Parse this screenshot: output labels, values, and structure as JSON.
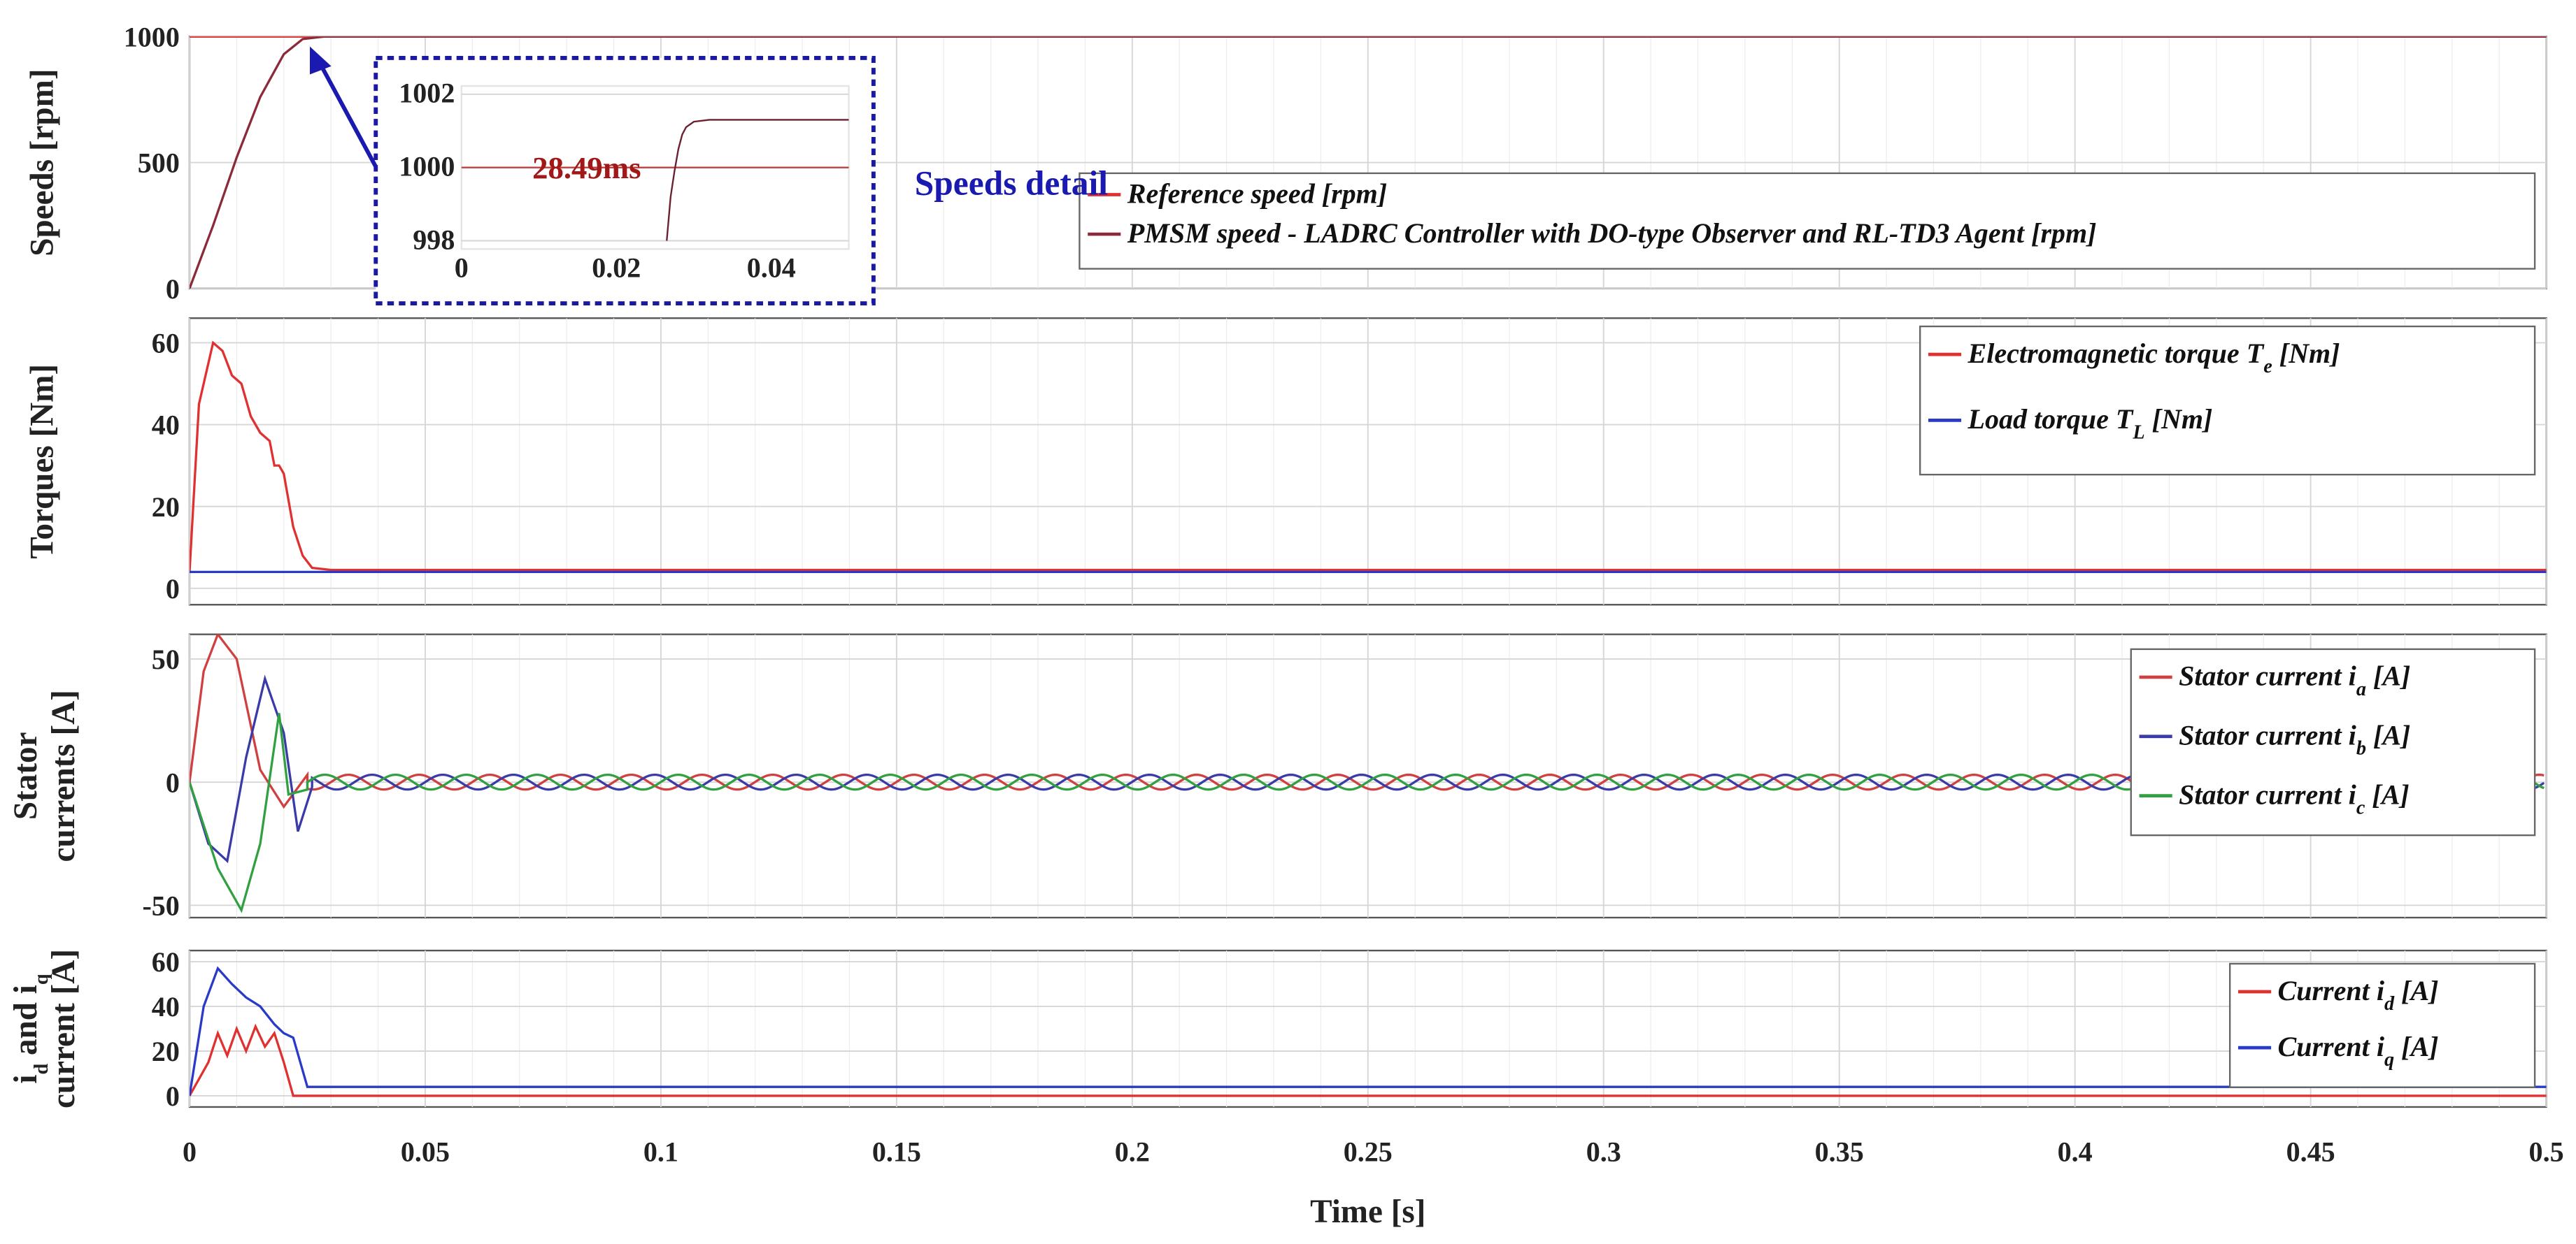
{
  "chart_data": {
    "type": "line",
    "xlabel": "Time [s]",
    "xlim": [
      0,
      0.5
    ],
    "xticks": [
      "0",
      "0.05",
      "0.1",
      "0.15",
      "0.2",
      "0.25",
      "0.3",
      "0.35",
      "0.4",
      "0.45",
      "0.5"
    ],
    "grid": true,
    "panels": [
      {
        "id": "speeds",
        "ylabel": "Speeds [rpm]",
        "ylim": [
          0,
          1000
        ],
        "yticks": [
          "0",
          "500",
          "1000"
        ],
        "legend": "right",
        "series": [
          {
            "name": "Reference speed [rpm]",
            "color": "#e03030",
            "t": [
              0,
              0.5
            ],
            "v": [
              1000,
              1000
            ]
          },
          {
            "name": "PMSM speed - LADRC Controller with DO-type Observer and RL-TD3 Agent  [rpm]",
            "color": "#8b2a3a",
            "t": [
              0,
              0.005,
              0.01,
              0.015,
              0.02,
              0.024,
              0.0285,
              0.5
            ],
            "v": [
              0,
              250,
              520,
              760,
              930,
              990,
              1000,
              1000
            ]
          }
        ],
        "inset": {
          "title": "Speeds detail",
          "annotation": "28.49ms",
          "xlim": [
            0,
            0.05
          ],
          "ylim": [
            998,
            1002
          ],
          "xticks": [
            "0",
            "0.02",
            "0.04"
          ],
          "yticks": [
            "998",
            "1000",
            "1002"
          ],
          "series": [
            {
              "name": "Reference",
              "t": [
                0,
                0.05
              ],
              "v": [
                1000,
                1000
              ]
            },
            {
              "name": "PMSM speed",
              "t": [
                0.0265,
                0.027,
                0.0275,
                0.028,
                0.0285,
                0.029,
                0.03,
                0.032,
                0.05
              ],
              "v": [
                998,
                999.2,
                999.9,
                1000.5,
                1000.9,
                1001.1,
                1001.25,
                1001.3,
                1001.3
              ]
            }
          ]
        }
      },
      {
        "id": "torques",
        "ylabel": "Torques [Nm]",
        "ylim": [
          -4,
          66
        ],
        "yticks": [
          "0",
          "20",
          "40",
          "60"
        ],
        "legend": "top-right",
        "series": [
          {
            "name": "Electromagnetic torque",
            "sub": "e",
            "unit": " [Nm]",
            "color": "#e03030",
            "t": [
              0,
              0.002,
              0.005,
              0.007,
              0.009,
              0.011,
              0.013,
              0.015,
              0.017,
              0.018,
              0.019,
              0.02,
              0.022,
              0.024,
              0.026,
              0.03,
              0.5
            ],
            "v": [
              4,
              45,
              60,
              58,
              52,
              50,
              42,
              38,
              36,
              30,
              30,
              28,
              15,
              8,
              5,
              4.5,
              4.5
            ]
          },
          {
            "name": "Load torque",
            "sub": "L",
            "unit": " [Nm]",
            "color": "#2a3ac8",
            "t": [
              0,
              0.5
            ],
            "v": [
              4,
              4
            ]
          }
        ]
      },
      {
        "id": "stator",
        "ylabel": [
          "Stator",
          "currents [A]"
        ],
        "ylim": [
          -55,
          60
        ],
        "yticks": [
          "-50",
          "0",
          "50"
        ],
        "legend": "top-right",
        "steady_amplitude": 3,
        "steady_frequency_hz": 66.7,
        "series": [
          {
            "name": "Stator current",
            "sub": "a",
            "unit": " [A]",
            "color": "#d04040",
            "phase_deg": 0,
            "t": [
              0,
              0.003,
              0.006,
              0.01,
              0.015,
              0.02,
              0.025
            ],
            "v": [
              0,
              45,
              60,
              50,
              5,
              -10,
              3
            ]
          },
          {
            "name": "Stator current",
            "sub": "b",
            "unit": " [A]",
            "color": "#3a3aa8",
            "phase_deg": -120,
            "t": [
              0,
              0.004,
              0.008,
              0.012,
              0.016,
              0.02,
              0.023,
              0.026
            ],
            "v": [
              0,
              -25,
              -32,
              10,
              42,
              20,
              -20,
              -2
            ]
          },
          {
            "name": "Stator current",
            "sub": "c",
            "unit": " [A]",
            "color": "#30a040",
            "phase_deg": 120,
            "t": [
              0,
              0.006,
              0.011,
              0.015,
              0.019,
              0.021,
              0.025
            ],
            "v": [
              0,
              -35,
              -52,
              -25,
              28,
              -5,
              -3
            ]
          }
        ]
      },
      {
        "id": "idq",
        "ylabel": [
          "i_d and i_q",
          "current [A]"
        ],
        "ylabel_parts": {
          "i1": "i",
          "s1": "d",
          "and": " and ",
          "i2": "i",
          "s2": "q",
          "line2": "current [A]"
        },
        "ylim": [
          -5,
          65
        ],
        "yticks": [
          "0",
          "20",
          "40",
          "60"
        ],
        "legend": "top-right",
        "series": [
          {
            "name": "Current",
            "sub": "d",
            "unit": " [A]",
            "color": "#e03030",
            "t": [
              0,
              0.004,
              0.006,
              0.008,
              0.01,
              0.012,
              0.014,
              0.016,
              0.018,
              0.02,
              0.022,
              0.5
            ],
            "v": [
              0,
              15,
              28,
              18,
              30,
              20,
              31,
              22,
              28,
              15,
              0,
              0
            ]
          },
          {
            "name": "Current",
            "sub": "q",
            "unit": " [A]",
            "color": "#2a3ac8",
            "t": [
              0,
              0.003,
              0.006,
              0.009,
              0.012,
              0.015,
              0.018,
              0.02,
              0.022,
              0.025,
              0.5
            ],
            "v": [
              0,
              40,
              57,
              50,
              44,
              40,
              32,
              28,
              26,
              4,
              4
            ]
          }
        ]
      }
    ]
  }
}
